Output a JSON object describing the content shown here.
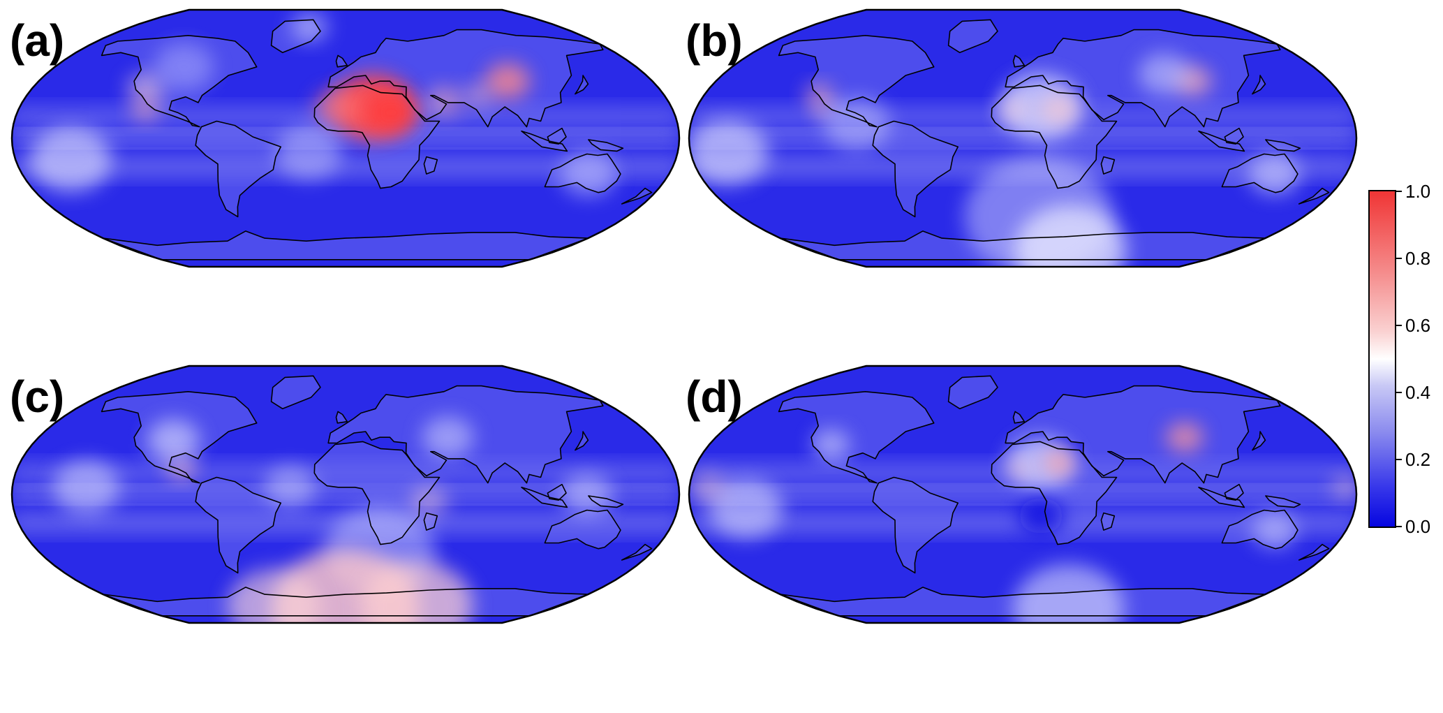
{
  "panels": [
    {
      "id": "a",
      "label": "(a)"
    },
    {
      "id": "b",
      "label": "(b)"
    },
    {
      "id": "c",
      "label": "(c)"
    },
    {
      "id": "d",
      "label": "(d)"
    }
  ],
  "colorbar": {
    "min": 0.0,
    "max": 1.0,
    "tick_labels": [
      "1.0",
      "0.8",
      "0.6",
      "0.4",
      "0.2",
      "0.0"
    ],
    "colors": {
      "low": "#0606e0",
      "mid": "#ffffff",
      "high": "#f03535"
    }
  },
  "ocean_color": "#2a2ae8",
  "coastline_color": "#000000"
}
